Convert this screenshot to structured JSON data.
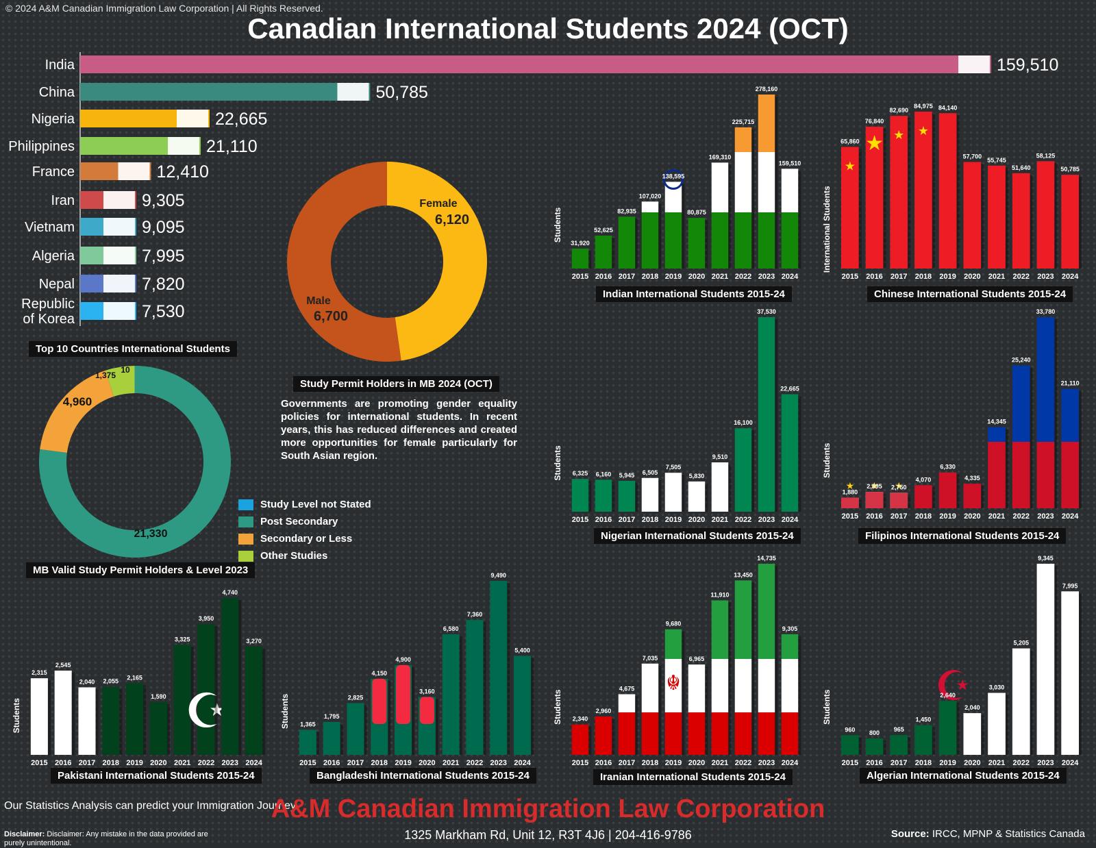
{
  "header": {
    "copyright": "© 2024 A&M Canadian Immigration Law Corporation | All Rights Reserved.",
    "title": "Canadian International Students 2024 (OCT)"
  },
  "chart_data": [
    {
      "id": "top10",
      "type": "bar",
      "orientation": "horizontal",
      "title": "Top 10 Countries International Students",
      "categories": [
        "India",
        "China",
        "Nigeria",
        "Philippines",
        "France",
        "Iran",
        "Vietnam",
        "Algeria",
        "Nepal",
        "Republic of Korea"
      ],
      "values": [
        159510,
        50785,
        22665,
        21110,
        12410,
        9305,
        9095,
        7995,
        7820,
        7530
      ],
      "value_labels": [
        "159,510",
        "50,785",
        "22,665",
        "21,110",
        "12,410",
        "9,305",
        "9,095",
        "7,995",
        "7,820",
        "7,530"
      ],
      "colors": [
        "#c85c86",
        "#3b8a7f",
        "#f6b40c",
        "#8dcc55",
        "#d37b3a",
        "#cf4a4a",
        "#3fa9c9",
        "#7fc99a",
        "#5b78c8",
        "#2ab3f0"
      ]
    },
    {
      "id": "gender",
      "type": "pie",
      "donut": true,
      "title": "Study Permit Holders in MB 2024 (OCT)",
      "labels": [
        "Female",
        "Male"
      ],
      "values": [
        6120,
        6700
      ],
      "value_labels": [
        "6,120",
        "6,700"
      ],
      "colors": [
        "#fcb813",
        "#c4541b"
      ]
    },
    {
      "id": "level",
      "type": "pie",
      "donut": true,
      "title": "MB Valid Study Permit Holders & Level 2023",
      "labels": [
        "Post Secondary",
        "Secondary or Less",
        "Other Studies",
        "Study Level not Stated"
      ],
      "values": [
        21330,
        4960,
        1375,
        10
      ],
      "value_labels": [
        "21,330",
        "4,960",
        "1,375",
        "10"
      ],
      "colors": [
        "#2e9a83",
        "#f3a33a",
        "#a9cf3c",
        "#1ba3e0"
      ],
      "legend": [
        "Study Level not Stated",
        "Post Secondary",
        "Secondary or Less",
        "Other Studies"
      ],
      "legend_colors": [
        "#1ba3e0",
        "#2e9a83",
        "#f3a33a",
        "#a9cf3c"
      ],
      "legend_position": "right"
    },
    {
      "id": "india",
      "type": "bar",
      "title": "Indian International Students 2015-24",
      "ylabel": "Students",
      "categories": [
        "2015",
        "2016",
        "2017",
        "2018",
        "2019",
        "2020",
        "2021",
        "2022",
        "2023",
        "2024"
      ],
      "values": [
        31920,
        52625,
        82935,
        107020,
        138595,
        80875,
        169310,
        225715,
        278160,
        159510
      ],
      "value_labels": [
        "31,920",
        "52,625",
        "82,935",
        "107,020",
        "138,595",
        "80,875",
        "169,310",
        "225,715",
        "278,160",
        "159,510"
      ],
      "colors": {
        "top": "#f79a32",
        "mid": "#ffffff",
        "bottom": "#138808",
        "accent": "#0a2b8c"
      }
    },
    {
      "id": "china",
      "type": "bar",
      "title": "Chinese International Students 2015-24",
      "ylabel": "International Students",
      "categories": [
        "2015",
        "2016",
        "2017",
        "2018",
        "2019",
        "2020",
        "2021",
        "2022",
        "2023",
        "2024"
      ],
      "values": [
        65860,
        76840,
        82690,
        84975,
        84140,
        57700,
        55745,
        51640,
        58125,
        50785
      ],
      "value_labels": [
        "65,860",
        "76,840",
        "82,690",
        "84,975",
        "84,140",
        "57,700",
        "55,745",
        "51,640",
        "58,125",
        "50,785"
      ],
      "colors": {
        "main": "#ee1c25",
        "accent": "#ffde00"
      }
    },
    {
      "id": "nigeria",
      "type": "bar",
      "title": "Nigerian International Students 2015-24",
      "ylabel": "Students",
      "categories": [
        "2015",
        "2016",
        "2017",
        "2018",
        "2019",
        "2020",
        "2021",
        "2022",
        "2023",
        "2024"
      ],
      "values": [
        6325,
        6160,
        5945,
        6505,
        7505,
        5830,
        9510,
        16100,
        37530,
        22665
      ],
      "value_labels": [
        "6,325",
        "6,160",
        "5,945",
        "6,505",
        "7,505",
        "5,830",
        "9,510",
        "16,100",
        "37,530",
        "22,665"
      ],
      "colors": {
        "green": "#008751",
        "white": "#ffffff"
      }
    },
    {
      "id": "philippines",
      "type": "bar",
      "title": "Filipinos International Students 2015-24",
      "ylabel": "Students",
      "categories": [
        "2015",
        "2016",
        "2017",
        "2018",
        "2019",
        "2020",
        "2021",
        "2022",
        "2023",
        "2024"
      ],
      "values": [
        1880,
        2895,
        2750,
        4070,
        6330,
        4335,
        14345,
        25240,
        33780,
        21110
      ],
      "value_labels": [
        "1,880",
        "2,895",
        "2,750",
        "4,070",
        "6,330",
        "4,335",
        "14,345",
        "25,240",
        "33,780",
        "21,110"
      ],
      "colors": {
        "blue": "#0038a8",
        "red": "#ce1126",
        "white": "#ffffff",
        "sun": "#fcd116"
      }
    },
    {
      "id": "pakistan",
      "type": "bar",
      "title": "Pakistani International Students 2015-24",
      "ylabel": "Students",
      "categories": [
        "2015",
        "2016",
        "2017",
        "2018",
        "2019",
        "2020",
        "2021",
        "2022",
        "2023",
        "2024"
      ],
      "values": [
        2315,
        2545,
        2040,
        2055,
        2165,
        1590,
        3325,
        3950,
        4740,
        3270
      ],
      "value_labels": [
        "2,315",
        "2,545",
        "2,040",
        "2,055",
        "2,165",
        "1,590",
        "3,325",
        "3,950",
        "4,740",
        "3,270"
      ],
      "colors": {
        "green": "#01411c",
        "white": "#ffffff"
      }
    },
    {
      "id": "bangladesh",
      "type": "bar",
      "title": "Bangladeshi International Students 2015-24",
      "ylabel": "Students",
      "categories": [
        "2015",
        "2016",
        "2017",
        "2018",
        "2019",
        "2020",
        "2021",
        "2022",
        "2023",
        "2024"
      ],
      "values": [
        1365,
        1795,
        2825,
        4150,
        4900,
        3160,
        6580,
        7360,
        9490,
        5400
      ],
      "value_labels": [
        "1,365",
        "1,795",
        "2,825",
        "4,150",
        "4,900",
        "3,160",
        "6,580",
        "7,360",
        "9,490",
        "5,400"
      ],
      "colors": {
        "green": "#006a4e",
        "red": "#f42a41"
      }
    },
    {
      "id": "iran",
      "type": "bar",
      "title": "Iranian International Students 2015-24",
      "ylabel": "Students",
      "categories": [
        "2015",
        "2016",
        "2017",
        "2018",
        "2019",
        "2020",
        "2021",
        "2022",
        "2023",
        "2024"
      ],
      "values": [
        2340,
        2960,
        4675,
        7035,
        9680,
        6965,
        11910,
        13450,
        14735,
        9305
      ],
      "value_labels": [
        "2,340",
        "2,960",
        "4,675",
        "7,035",
        "9,680",
        "6,965",
        "11,910",
        "13,450",
        "14,735",
        "9,305"
      ],
      "colors": {
        "green": "#239f40",
        "white": "#ffffff",
        "red": "#da0000"
      }
    },
    {
      "id": "algeria",
      "type": "bar",
      "title": "Algerian International Students 2015-24",
      "ylabel": "Students",
      "categories": [
        "2015",
        "2016",
        "2017",
        "2018",
        "2019",
        "2020",
        "2021",
        "2022",
        "2023",
        "2024"
      ],
      "values": [
        960,
        800,
        965,
        1450,
        2640,
        2040,
        3030,
        5205,
        9345,
        7995
      ],
      "value_labels": [
        "960",
        "800",
        "965",
        "1,450",
        "2,640",
        "2,040",
        "3,030",
        "5,205",
        "9,345",
        "7,995"
      ],
      "colors": {
        "green": "#006233",
        "white": "#ffffff",
        "red": "#d21034"
      }
    }
  ],
  "note": "Governments are promoting gender equality policies for international students. In recent years, this has reduced differences and created more opportunities for female particularly for South Asian region.",
  "footer": {
    "tagline": "Our Statistics Analysis can predict your Immigration Journey.",
    "disclaimer_label": "Disclaimer:",
    "disclaimer": "Disclaimer: Any mistake in the data provided are purely unintentional.",
    "company": "A&M Canadian Immigration Law Corporation",
    "address": "1325 Markham Rd, Unit 12, R3T 4J6   |   204-416-9786",
    "source_label": "Source:",
    "source": "IRCC, MPNP & Statistics Canada"
  }
}
